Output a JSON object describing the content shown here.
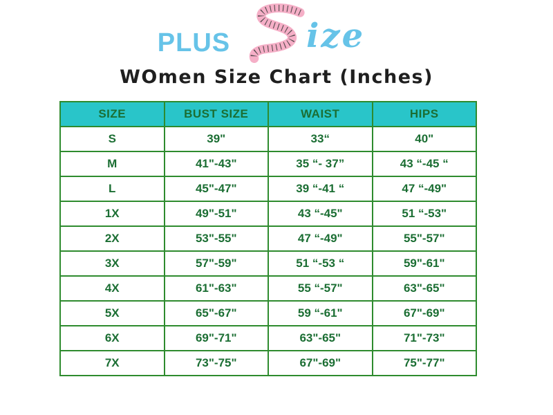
{
  "logo": {
    "plus_text": "PLUS",
    "ize_text": "ize",
    "blue": "#66c3e8",
    "pink": "#f5afc7"
  },
  "title": "WOmen Size Chart (Inches)",
  "colors": {
    "header_bg": "#29c5c9",
    "border_green": "#2e8b2e",
    "cell_text_green": "#1b6e33",
    "title_color": "#1f1f1f"
  },
  "chart_data": {
    "type": "table",
    "title": "WOmen Size Chart (Inches)",
    "columns": [
      "SIZE",
      "BUST SIZE",
      "WAIST",
      "HIPS"
    ],
    "rows": [
      [
        "S",
        "39\"",
        "33“",
        "40\""
      ],
      [
        "M",
        "41\"-43\"",
        "35 “- 37”",
        "43 “-45 “"
      ],
      [
        "L",
        "45\"-47\"",
        "39 “-41 “",
        "47 “-49\""
      ],
      [
        "1X",
        "49\"-51\"",
        "43 “-45\"",
        "51 “-53\""
      ],
      [
        "2X",
        "53\"-55\"",
        "47 “-49\"",
        "55\"-57\""
      ],
      [
        "3X",
        "57\"-59\"",
        "51 “-53 “",
        "59\"-61\""
      ],
      [
        "4X",
        "61\"-63\"",
        "55 “-57\"",
        "63\"-65\""
      ],
      [
        "5X",
        "65\"-67\"",
        "59 “-61\"",
        "67\"-69\""
      ],
      [
        "6X",
        "69\"-71\"",
        "63\"-65\"",
        "71\"-73\""
      ],
      [
        "7X",
        "73\"-75\"",
        "67\"-69\"",
        "75\"-77\""
      ]
    ]
  }
}
